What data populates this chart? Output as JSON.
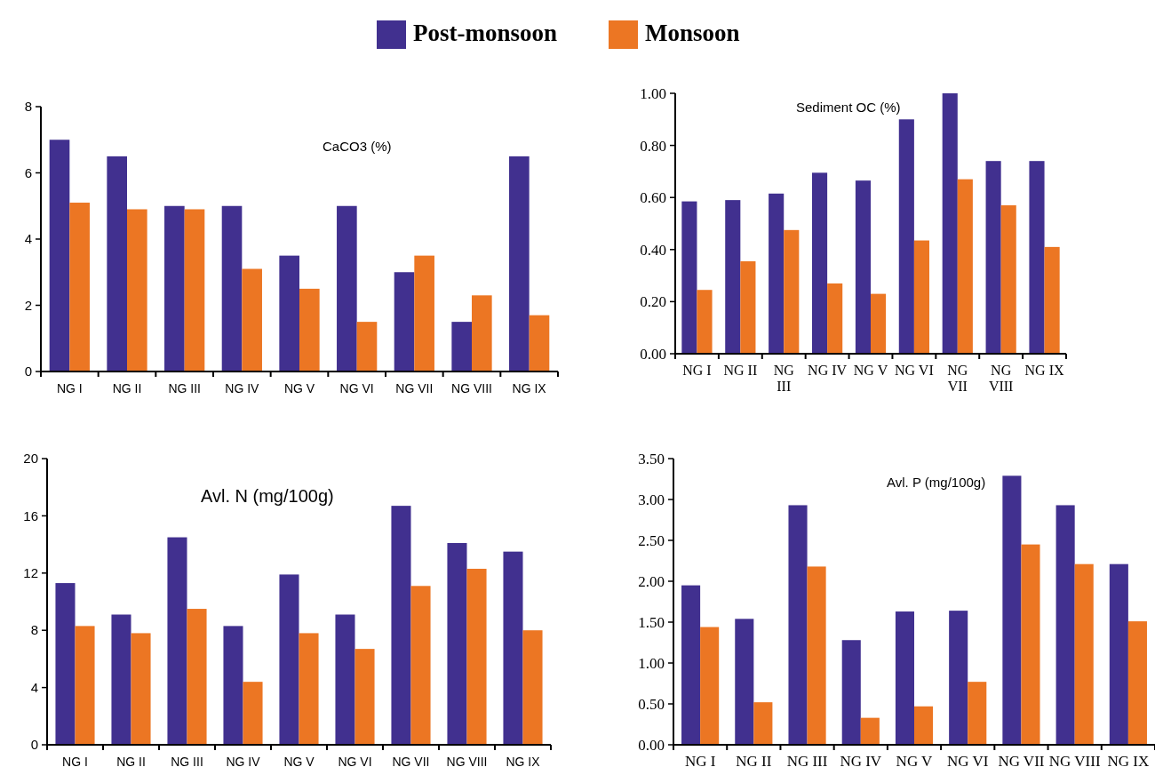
{
  "chart_data": [
    {
      "type": "bar",
      "title": "CaCO3 (%)",
      "categories": [
        "NG I",
        "NG II",
        "NG III",
        "NG IV",
        "NG V",
        "NG VI",
        "NG VII",
        "NG VIII",
        "NG IX"
      ],
      "legend": "top",
      "series": [
        {
          "name": "Post-monsoon",
          "color": "#41308f",
          "values": [
            7,
            6.5,
            5,
            5,
            3.5,
            5,
            3,
            1.5,
            6.5
          ]
        },
        {
          "name": "Monsoon",
          "color": "#ec7623",
          "values": [
            5.1,
            4.9,
            4.9,
            3.1,
            2.5,
            1.5,
            3.5,
            2.3,
            1.7
          ]
        }
      ],
      "ylim": [
        0,
        8
      ],
      "yticks": [
        0,
        2,
        4,
        6,
        8
      ]
    },
    {
      "type": "bar",
      "title": "Sediment OC (%)",
      "categories": [
        "NG I",
        "NG II",
        "NG III",
        "NG IV",
        "NG V",
        "NG VI",
        "NG VII",
        "NG VIII",
        "NG IX"
      ],
      "series": [
        {
          "color": "#41308f",
          "values": [
            0.585,
            0.59,
            0.615,
            0.695,
            0.665,
            0.9,
            1.0,
            0.74,
            0.74
          ]
        },
        {
          "color": "#ec7623",
          "values": [
            0.245,
            0.355,
            0.475,
            0.27,
            0.23,
            0.435,
            0.67,
            0.57,
            0.41
          ]
        }
      ],
      "ylim": [
        0,
        1
      ],
      "yticks": [
        {
          "value": 0,
          "label": "0.00"
        },
        {
          "value": 0.2,
          "label": "0.20"
        },
        {
          "value": 0.4,
          "label": "0.40"
        },
        {
          "value": 0.6,
          "label": "0.60"
        },
        {
          "value": 0.8,
          "label": "0.80"
        },
        {
          "value": 1,
          "label": "1.00"
        }
      ]
    },
    {
      "type": "bar",
      "title": "Avl. N (mg/100g)",
      "categories": [
        "NG I",
        "NG II",
        "NG III",
        "NG IV",
        "NG V",
        "NG VI",
        "NG VII",
        "NG VIII",
        "NG IX"
      ],
      "series": [
        {
          "color": "#41308f",
          "values": [
            11.3,
            9.1,
            14.5,
            8.3,
            11.9,
            9.1,
            16.7,
            14.1,
            13.5
          ]
        },
        {
          "color": "#ec7623",
          "values": [
            8.3,
            7.8,
            9.5,
            4.4,
            7.8,
            6.7,
            11.1,
            12.3,
            8.0
          ]
        }
      ],
      "ylim": [
        0,
        20
      ],
      "yticks": [
        0,
        4,
        8,
        12,
        16,
        20
      ]
    },
    {
      "type": "bar",
      "title": "Avl. P (mg/100g)",
      "categories": [
        "NG I",
        "NG II",
        "NG III",
        "NG IV",
        "NG V",
        "NG VI",
        "NG VII",
        "NG VIII",
        "NG IX"
      ],
      "series": [
        {
          "color": "#41308f",
          "values": [
            1.95,
            1.54,
            2.93,
            1.28,
            1.63,
            1.64,
            3.29,
            2.93,
            2.21
          ]
        },
        {
          "color": "#ec7623",
          "values": [
            1.44,
            0.52,
            2.18,
            0.33,
            0.47,
            0.77,
            2.45,
            2.21,
            1.51
          ]
        }
      ],
      "ylim": [
        0,
        3.5
      ],
      "yticks": [
        {
          "value": 0,
          "label": "0.00"
        },
        {
          "value": 0.5,
          "label": "0.50"
        },
        {
          "value": 1,
          "label": "1.00"
        },
        {
          "value": 1.5,
          "label": "1.50"
        },
        {
          "value": 2,
          "label": "2.00"
        },
        {
          "value": 2.5,
          "label": "2.50"
        },
        {
          "value": 3,
          "label": "3.00"
        },
        {
          "value": 3.5,
          "label": "3.50"
        }
      ]
    }
  ]
}
